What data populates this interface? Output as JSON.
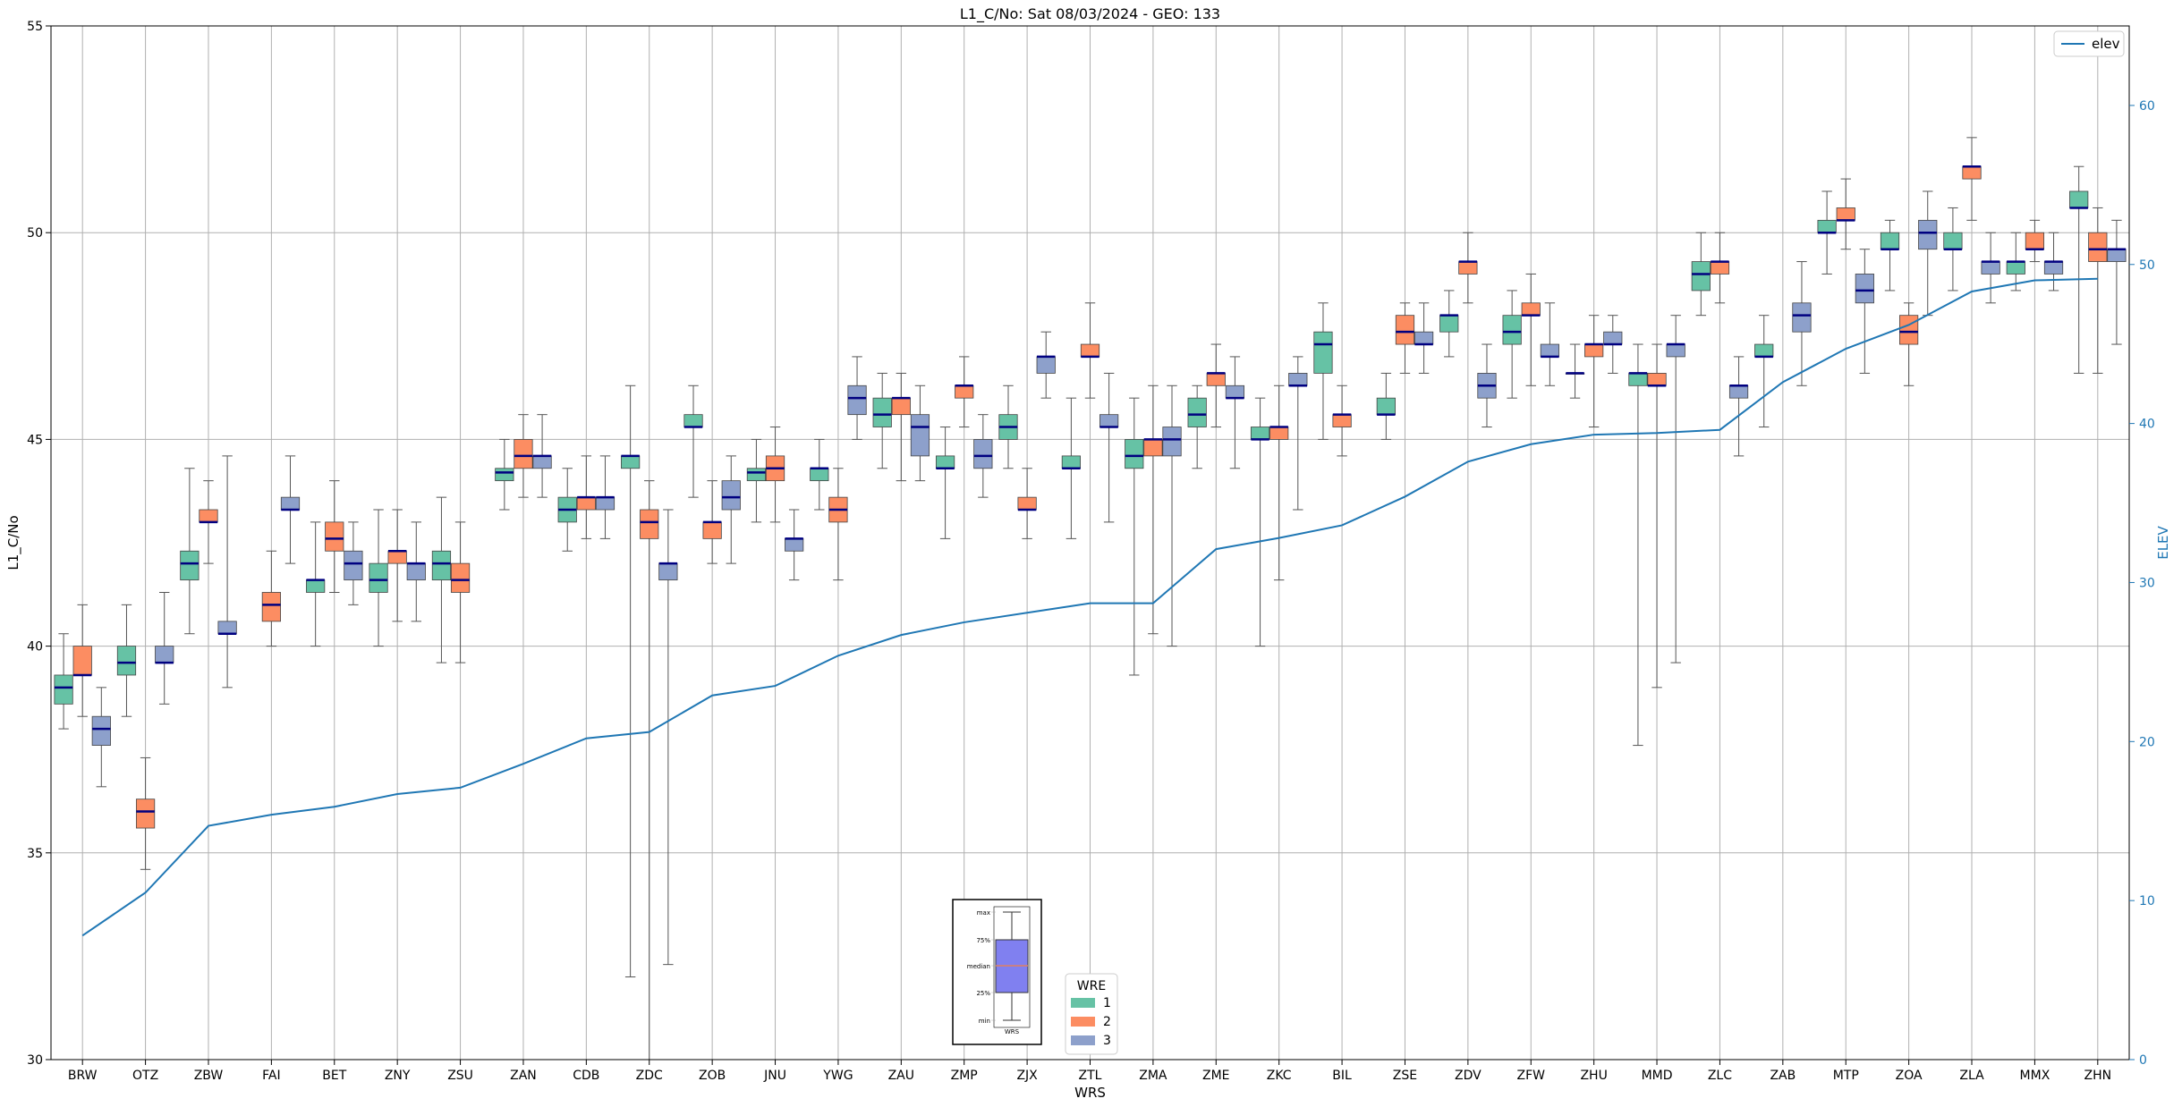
{
  "chart_data": {
    "type": "box",
    "title": "L1_C/No: Sat 08/03/2024 - GEO: 133",
    "xlabel": "WRS",
    "ylabel": "L1_C/No",
    "y2label": "ELEV",
    "ylim": [
      30,
      55
    ],
    "y2lim": [
      0,
      65
    ],
    "yticks": [
      30,
      35,
      40,
      45,
      50,
      55
    ],
    "y2ticks": [
      0,
      10,
      20,
      30,
      40,
      50,
      60
    ],
    "grid": true,
    "categories": [
      "BRW",
      "OTZ",
      "ZBW",
      "FAI",
      "BET",
      "ZNY",
      "ZSU",
      "ZAN",
      "CDB",
      "ZDC",
      "ZOB",
      "JNU",
      "YWG",
      "ZAU",
      "ZMP",
      "ZJX",
      "ZTL",
      "ZMA",
      "ZME",
      "ZKC",
      "BIL",
      "ZSE",
      "ZDV",
      "ZFW",
      "ZHU",
      "MMD",
      "ZLC",
      "ZAB",
      "MTP",
      "ZOA",
      "ZLA",
      "MMX",
      "ZHN"
    ],
    "colors": {
      "1": "#66c2a5",
      "2": "#fc8d62",
      "3": "#8da0cb",
      "elev": "#1f77b4",
      "median": "#000080",
      "whisker_red": "#ff0000"
    },
    "series": [
      {
        "name": "1",
        "boxes": [
          [
            "BRW",
            38,
            38.6,
            39,
            39.3,
            40.3
          ],
          [
            "OTZ",
            38.3,
            39.3,
            39.6,
            40,
            41
          ],
          [
            "ZBW",
            40.3,
            41.6,
            42,
            42.3,
            44.3
          ],
          [
            "BET",
            40,
            41.3,
            41.6,
            41.6,
            43
          ],
          [
            "ZNY",
            40,
            41.3,
            41.6,
            42,
            43.3
          ],
          [
            "ZSU",
            39.6,
            41.6,
            42,
            42.3,
            43.6
          ],
          [
            "ZAN",
            43.3,
            44,
            44.2,
            44.3,
            45
          ],
          [
            "CDB",
            42.3,
            43,
            43.3,
            43.6,
            44.3
          ],
          [
            "ZDC",
            32,
            44.3,
            44.6,
            44.6,
            46.3
          ],
          [
            "ZOB",
            43.6,
            45.3,
            45.3,
            45.6,
            46.3
          ],
          [
            "JNU",
            43,
            44,
            44.2,
            44.3,
            45
          ],
          [
            "YWG",
            43.3,
            44,
            44.3,
            44.3,
            45
          ],
          [
            "ZAU",
            44.3,
            45.3,
            45.6,
            46,
            46.6
          ],
          [
            "ZMP",
            42.6,
            44.3,
            44.3,
            44.6,
            45.3
          ],
          [
            "ZJX",
            44.3,
            45,
            45.3,
            45.6,
            46.3
          ],
          [
            "ZTL",
            42.6,
            44.3,
            44.3,
            44.6,
            46
          ],
          [
            "ZMA",
            39.3,
            44.3,
            44.6,
            45,
            46
          ],
          [
            "ZME",
            44.3,
            45.3,
            45.6,
            46,
            46.3
          ],
          [
            "ZKC",
            40,
            45,
            45,
            45.3,
            46
          ],
          [
            "BIL",
            45,
            46.6,
            47.3,
            47.6,
            48.3
          ],
          [
            "ZSE",
            45,
            45.6,
            45.6,
            46,
            46.6
          ],
          [
            "ZDV",
            47,
            47.6,
            48,
            48,
            48.6
          ],
          [
            "ZFW",
            46,
            47.3,
            47.6,
            48,
            48.6
          ],
          [
            "ZHU",
            46,
            46.6,
            46.6,
            46.6,
            47.3
          ],
          [
            "MMD",
            37.6,
            46.3,
            46.6,
            46.6,
            47.3
          ],
          [
            "ZLC",
            48,
            48.6,
            49,
            49.3,
            50
          ],
          [
            "ZAB",
            45.3,
            47,
            47,
            47.3,
            48
          ],
          [
            "MTP",
            49,
            50,
            50,
            50.3,
            51
          ],
          [
            "ZOA",
            48.6,
            49.6,
            49.6,
            50,
            50.3
          ],
          [
            "ZLA",
            48.6,
            49.6,
            49.6,
            50,
            50.6
          ],
          [
            "MMX",
            48.6,
            49,
            49.3,
            49.3,
            50
          ],
          [
            "ZHN",
            46.6,
            50.6,
            50.6,
            51,
            51.6
          ]
        ]
      },
      {
        "name": "2",
        "boxes": [
          [
            "BRW",
            38.3,
            39.3,
            39.3,
            40,
            41
          ],
          [
            "OTZ",
            34.6,
            35.6,
            36,
            36.3,
            37.3
          ],
          [
            "ZBW",
            42,
            43,
            43,
            43.3,
            44
          ],
          [
            "FAI",
            40,
            40.6,
            41,
            41.3,
            42.3
          ],
          [
            "BET",
            41.3,
            42.3,
            42.6,
            43,
            44
          ],
          [
            "ZNY",
            40.6,
            42,
            42.3,
            42.3,
            43.3
          ],
          [
            "ZSU",
            39.6,
            41.3,
            41.6,
            42,
            43
          ],
          [
            "ZAN",
            43.6,
            44.3,
            44.6,
            45,
            45.6
          ],
          [
            "CDB",
            42.6,
            43.3,
            43.6,
            43.6,
            44.6
          ],
          [
            "ZDC",
            30,
            42.6,
            43,
            43.3,
            44
          ],
          [
            "ZOB",
            42,
            42.6,
            43,
            43,
            44
          ],
          [
            "JNU",
            43,
            44,
            44.3,
            44.6,
            45.3
          ],
          [
            "YWG",
            41.6,
            43,
            43.3,
            43.6,
            44.3
          ],
          [
            "ZAU",
            44,
            45.6,
            46,
            46,
            46.6
          ],
          [
            "ZMP",
            45.3,
            46,
            46.3,
            46.3,
            47
          ],
          [
            "ZJX",
            42.6,
            43.3,
            43.3,
            43.6,
            44.3
          ],
          [
            "ZTL",
            46,
            47,
            47,
            47.3,
            48.3
          ],
          [
            "ZMA",
            40.3,
            44.6,
            45,
            45,
            46.3
          ],
          [
            "ZME",
            45.3,
            46.3,
            46.6,
            46.6,
            47.3
          ],
          [
            "ZKC",
            41.6,
            45,
            45.3,
            45.3,
            46.3
          ],
          [
            "BIL",
            44.6,
            45.3,
            45.6,
            45.6,
            46.3
          ],
          [
            "ZSE",
            46.6,
            47.3,
            47.6,
            48,
            48.3
          ],
          [
            "ZDV",
            48.3,
            49,
            49.3,
            49.3,
            50
          ],
          [
            "ZFW",
            46.3,
            48,
            48,
            48.3,
            49
          ],
          [
            "ZHU",
            45.3,
            47,
            47.3,
            47.3,
            48
          ],
          [
            "MMD",
            39,
            46.3,
            46.3,
            46.6,
            47.3
          ],
          [
            "ZLC",
            48.3,
            49,
            49.3,
            49.3,
            50
          ],
          [
            "MTP",
            49.6,
            50.3,
            50.3,
            50.6,
            51.3
          ],
          [
            "ZOA",
            46.3,
            47.3,
            47.6,
            48,
            48.3
          ],
          [
            "ZLA",
            50.3,
            51.3,
            51.6,
            51.6,
            52.3
          ],
          [
            "MMX",
            49.3,
            49.6,
            49.6,
            50,
            50.3
          ],
          [
            "ZHN",
            46.6,
            49.3,
            49.6,
            50,
            50.6
          ]
        ]
      },
      {
        "name": "3",
        "boxes": [
          [
            "BRW",
            36.6,
            37.6,
            38,
            38.3,
            39
          ],
          [
            "OTZ",
            38.6,
            39.6,
            39.6,
            40,
            41.3
          ],
          [
            "ZBW",
            39,
            40.3,
            40.3,
            40.6,
            44.6
          ],
          [
            "FAI",
            42,
            43.3,
            43.3,
            43.6,
            44.6
          ],
          [
            "BET",
            41,
            41.6,
            42,
            42.3,
            43
          ],
          [
            "ZNY",
            40.6,
            41.6,
            42,
            42,
            43
          ],
          [
            "ZAN",
            43.6,
            44.3,
            44.6,
            44.6,
            45.6
          ],
          [
            "CDB",
            42.6,
            43.3,
            43.6,
            43.6,
            44.6
          ],
          [
            "ZDC",
            32.3,
            41.6,
            42,
            42,
            43.3
          ],
          [
            "ZOB",
            42,
            43.3,
            43.6,
            44,
            44.6
          ],
          [
            "JNU",
            41.6,
            42.3,
            42.6,
            42.6,
            43.3
          ],
          [
            "YWG",
            45,
            45.6,
            46,
            46.3,
            47
          ],
          [
            "ZAU",
            44,
            44.6,
            45.3,
            45.6,
            46.3
          ],
          [
            "ZMP",
            43.6,
            44.3,
            44.6,
            45,
            45.6
          ],
          [
            "ZJX",
            46,
            46.6,
            47,
            47,
            47.6
          ],
          [
            "ZTL",
            43,
            45.3,
            45.3,
            45.6,
            46.6
          ],
          [
            "ZMA",
            40,
            44.6,
            45,
            45.3,
            46.3
          ],
          [
            "ZME",
            44.3,
            46,
            46,
            46.3,
            47
          ],
          [
            "ZKC",
            43.3,
            46.3,
            46.3,
            46.6,
            47
          ],
          [
            "ZSE",
            46.6,
            47.3,
            47.3,
            47.6,
            48.3
          ],
          [
            "ZDV",
            45.3,
            46,
            46.3,
            46.6,
            47.3
          ],
          [
            "ZFW",
            46.3,
            47,
            47,
            47.3,
            48.3
          ],
          [
            "ZHU",
            46.6,
            47.3,
            47.3,
            47.6,
            48
          ],
          [
            "MMD",
            39.6,
            47,
            47.3,
            47.3,
            48
          ],
          [
            "ZLC",
            44.6,
            46,
            46.3,
            46.3,
            47
          ],
          [
            "ZAB",
            46.3,
            47.6,
            48,
            48.3,
            49.3
          ],
          [
            "MTP",
            46.6,
            48.3,
            48.6,
            49,
            49.6
          ],
          [
            "ZOA",
            48,
            49.6,
            50,
            50.3,
            51
          ],
          [
            "ZLA",
            48.3,
            49,
            49.3,
            49.3,
            50
          ],
          [
            "MMX",
            48.6,
            49,
            49.3,
            49.3,
            50
          ],
          [
            "ZHN",
            47.3,
            49.3,
            49.6,
            49.6,
            50.3
          ]
        ]
      },
      {
        "name": "elev",
        "axis": "y2",
        "values": [
          7.8,
          10.5,
          14.7,
          15.4,
          15.9,
          16.7,
          17.1,
          18.6,
          20.2,
          20.6,
          22.9,
          23.5,
          25.4,
          26.7,
          27.5,
          28.1,
          28.7,
          28.7,
          32.1,
          32.8,
          33.6,
          35.4,
          37.6,
          38.7,
          39.3,
          39.4,
          39.6,
          42.6,
          44.7,
          46.2,
          48.3,
          49.0,
          49.1
        ]
      }
    ],
    "legend": {
      "title": "WRE",
      "entries": [
        "1",
        "2",
        "3"
      ],
      "placement": "lower-center"
    },
    "legend2": {
      "entries": [
        "elev"
      ],
      "placement": "top-right"
    },
    "inset_key": {
      "labels": [
        "max",
        "75%",
        "median",
        "25%",
        "min"
      ],
      "xlabel": "WRS",
      "placement": "bottom-center"
    }
  }
}
